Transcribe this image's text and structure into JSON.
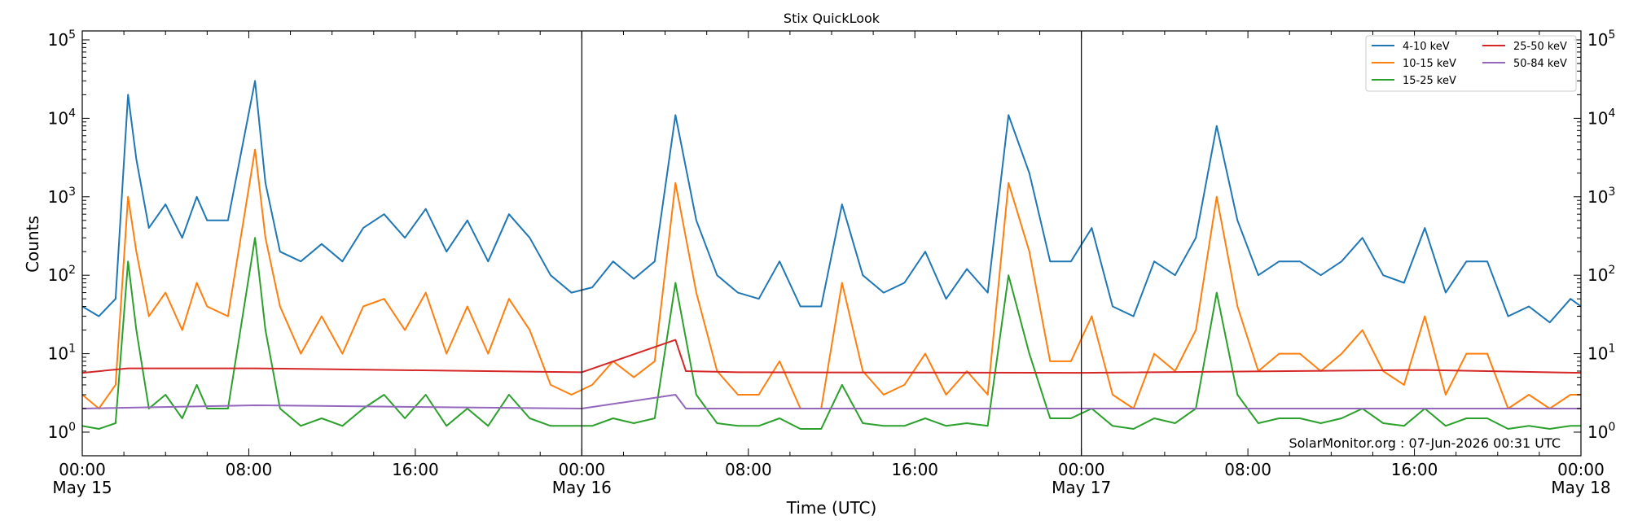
{
  "chart_data": {
    "type": "line",
    "title": "Stix QuickLook",
    "xlabel": "Time (UTC)",
    "ylabel": "Counts",
    "yscale": "log",
    "ylim": [
      0.5,
      130000
    ],
    "xlim_hours": [
      0,
      72
    ],
    "grid": false,
    "legend_position": "top-right",
    "y_tick_labels": [
      {
        "base": "10",
        "exp": "0",
        "value": 1
      },
      {
        "base": "10",
        "exp": "1",
        "value": 10
      },
      {
        "base": "10",
        "exp": "2",
        "value": 100
      },
      {
        "base": "10",
        "exp": "3",
        "value": 1000
      },
      {
        "base": "10",
        "exp": "4",
        "value": 10000
      },
      {
        "base": "10",
        "exp": "5",
        "value": 100000
      }
    ],
    "x_ticks": [
      {
        "hour": 0,
        "time": "00:00",
        "date": "May 15"
      },
      {
        "hour": 8,
        "time": "08:00",
        "date": ""
      },
      {
        "hour": 16,
        "time": "16:00",
        "date": ""
      },
      {
        "hour": 24,
        "time": "00:00",
        "date": "May 16"
      },
      {
        "hour": 32,
        "time": "08:00",
        "date": ""
      },
      {
        "hour": 40,
        "time": "16:00",
        "date": ""
      },
      {
        "hour": 48,
        "time": "00:00",
        "date": "May 17"
      },
      {
        "hour": 56,
        "time": "08:00",
        "date": ""
      },
      {
        "hour": 64,
        "time": "16:00",
        "date": ""
      },
      {
        "hour": 72,
        "time": "00:00",
        "date": "May 18"
      }
    ],
    "day_boundaries_hours": [
      24,
      48
    ],
    "annotation": "SolarMonitor.org : 07-Jun-2026 00:31 UTC",
    "series": [
      {
        "name": "4-10 keV",
        "color": "#1f77b4",
        "points": [
          [
            0,
            40
          ],
          [
            0.8,
            30
          ],
          [
            1.6,
            50
          ],
          [
            2.2,
            20000
          ],
          [
            2.6,
            3000
          ],
          [
            3.2,
            400
          ],
          [
            4,
            800
          ],
          [
            4.8,
            300
          ],
          [
            5.5,
            1000
          ],
          [
            6,
            500
          ],
          [
            7,
            500
          ],
          [
            8.3,
            30000
          ],
          [
            8.8,
            1500
          ],
          [
            9.5,
            200
          ],
          [
            10.5,
            150
          ],
          [
            11.5,
            250
          ],
          [
            12.5,
            150
          ],
          [
            13.5,
            400
          ],
          [
            14.5,
            600
          ],
          [
            15.5,
            300
          ],
          [
            16.5,
            700
          ],
          [
            17.5,
            200
          ],
          [
            18.5,
            500
          ],
          [
            19.5,
            150
          ],
          [
            20.5,
            600
          ],
          [
            21.5,
            300
          ],
          [
            22.5,
            100
          ],
          [
            23.5,
            60
          ],
          [
            24.5,
            70
          ],
          [
            25.5,
            150
          ],
          [
            26.5,
            90
          ],
          [
            27.5,
            150
          ],
          [
            28.5,
            11000
          ],
          [
            29.5,
            500
          ],
          [
            30.5,
            100
          ],
          [
            31.5,
            60
          ],
          [
            32.5,
            50
          ],
          [
            33.5,
            150
          ],
          [
            34.5,
            40
          ],
          [
            35.5,
            40
          ],
          [
            36.5,
            800
          ],
          [
            37.5,
            100
          ],
          [
            38.5,
            60
          ],
          [
            39.5,
            80
          ],
          [
            40.5,
            200
          ],
          [
            41.5,
            50
          ],
          [
            42.5,
            120
          ],
          [
            43.5,
            60
          ],
          [
            44.5,
            11000
          ],
          [
            45.5,
            2000
          ],
          [
            46.5,
            150
          ],
          [
            47.5,
            150
          ],
          [
            48.5,
            400
          ],
          [
            49.5,
            40
          ],
          [
            50.5,
            30
          ],
          [
            51.5,
            150
          ],
          [
            52.5,
            100
          ],
          [
            53.5,
            300
          ],
          [
            54.5,
            8000
          ],
          [
            55.5,
            500
          ],
          [
            56.5,
            100
          ],
          [
            57.5,
            150
          ],
          [
            58.5,
            150
          ],
          [
            59.5,
            100
          ],
          [
            60.5,
            150
          ],
          [
            61.5,
            300
          ],
          [
            62.5,
            100
          ],
          [
            63.5,
            80
          ],
          [
            64.5,
            400
          ],
          [
            65.5,
            60
          ],
          [
            66.5,
            150
          ],
          [
            67.5,
            150
          ],
          [
            68.5,
            30
          ],
          [
            69.5,
            40
          ],
          [
            70.5,
            25
          ],
          [
            71.5,
            50
          ],
          [
            72,
            40
          ]
        ]
      },
      {
        "name": "10-15 keV",
        "color": "#ff7f0e",
        "points": [
          [
            0,
            3
          ],
          [
            0.8,
            2
          ],
          [
            1.6,
            4
          ],
          [
            2.2,
            1000
          ],
          [
            2.6,
            200
          ],
          [
            3.2,
            30
          ],
          [
            4,
            60
          ],
          [
            4.8,
            20
          ],
          [
            5.5,
            80
          ],
          [
            6,
            40
          ],
          [
            7,
            30
          ],
          [
            8.3,
            4000
          ],
          [
            8.8,
            300
          ],
          [
            9.5,
            40
          ],
          [
            10.5,
            10
          ],
          [
            11.5,
            30
          ],
          [
            12.5,
            10
          ],
          [
            13.5,
            40
          ],
          [
            14.5,
            50
          ],
          [
            15.5,
            20
          ],
          [
            16.5,
            60
          ],
          [
            17.5,
            10
          ],
          [
            18.5,
            40
          ],
          [
            19.5,
            10
          ],
          [
            20.5,
            50
          ],
          [
            21.5,
            20
          ],
          [
            22.5,
            4
          ],
          [
            23.5,
            3
          ],
          [
            24.5,
            4
          ],
          [
            25.5,
            8
          ],
          [
            26.5,
            5
          ],
          [
            27.5,
            8
          ],
          [
            28.5,
            1500
          ],
          [
            29.5,
            60
          ],
          [
            30.5,
            6
          ],
          [
            31.5,
            3
          ],
          [
            32.5,
            3
          ],
          [
            33.5,
            8
          ],
          [
            34.5,
            2
          ],
          [
            35.5,
            2
          ],
          [
            36.5,
            80
          ],
          [
            37.5,
            6
          ],
          [
            38.5,
            3
          ],
          [
            39.5,
            4
          ],
          [
            40.5,
            10
          ],
          [
            41.5,
            3
          ],
          [
            42.5,
            6
          ],
          [
            43.5,
            3
          ],
          [
            44.5,
            1500
          ],
          [
            45.5,
            200
          ],
          [
            46.5,
            8
          ],
          [
            47.5,
            8
          ],
          [
            48.5,
            30
          ],
          [
            49.5,
            3
          ],
          [
            50.5,
            2
          ],
          [
            51.5,
            10
          ],
          [
            52.5,
            6
          ],
          [
            53.5,
            20
          ],
          [
            54.5,
            1000
          ],
          [
            55.5,
            40
          ],
          [
            56.5,
            6
          ],
          [
            57.5,
            10
          ],
          [
            58.5,
            10
          ],
          [
            59.5,
            6
          ],
          [
            60.5,
            10
          ],
          [
            61.5,
            20
          ],
          [
            62.5,
            6
          ],
          [
            63.5,
            4
          ],
          [
            64.5,
            30
          ],
          [
            65.5,
            3
          ],
          [
            66.5,
            10
          ],
          [
            67.5,
            10
          ],
          [
            68.5,
            2
          ],
          [
            69.5,
            3
          ],
          [
            70.5,
            2
          ],
          [
            71.5,
            3
          ],
          [
            72,
            3
          ]
        ]
      },
      {
        "name": "15-25 keV",
        "color": "#2ca02c",
        "points": [
          [
            0,
            1.2
          ],
          [
            0.8,
            1.1
          ],
          [
            1.6,
            1.3
          ],
          [
            2.2,
            150
          ],
          [
            2.6,
            20
          ],
          [
            3.2,
            2
          ],
          [
            4,
            3
          ],
          [
            4.8,
            1.5
          ],
          [
            5.5,
            4
          ],
          [
            6,
            2
          ],
          [
            7,
            2
          ],
          [
            8.3,
            300
          ],
          [
            8.8,
            20
          ],
          [
            9.5,
            2
          ],
          [
            10.5,
            1.2
          ],
          [
            11.5,
            1.5
          ],
          [
            12.5,
            1.2
          ],
          [
            13.5,
            2
          ],
          [
            14.5,
            3
          ],
          [
            15.5,
            1.5
          ],
          [
            16.5,
            3
          ],
          [
            17.5,
            1.2
          ],
          [
            18.5,
            2
          ],
          [
            19.5,
            1.2
          ],
          [
            20.5,
            3
          ],
          [
            21.5,
            1.5
          ],
          [
            22.5,
            1.2
          ],
          [
            23.5,
            1.2
          ],
          [
            24.5,
            1.2
          ],
          [
            25.5,
            1.5
          ],
          [
            26.5,
            1.3
          ],
          [
            27.5,
            1.5
          ],
          [
            28.5,
            80
          ],
          [
            29.5,
            3
          ],
          [
            30.5,
            1.3
          ],
          [
            31.5,
            1.2
          ],
          [
            32.5,
            1.2
          ],
          [
            33.5,
            1.5
          ],
          [
            34.5,
            1.1
          ],
          [
            35.5,
            1.1
          ],
          [
            36.5,
            4
          ],
          [
            37.5,
            1.3
          ],
          [
            38.5,
            1.2
          ],
          [
            39.5,
            1.2
          ],
          [
            40.5,
            1.5
          ],
          [
            41.5,
            1.2
          ],
          [
            42.5,
            1.3
          ],
          [
            43.5,
            1.2
          ],
          [
            44.5,
            100
          ],
          [
            45.5,
            10
          ],
          [
            46.5,
            1.5
          ],
          [
            47.5,
            1.5
          ],
          [
            48.5,
            2
          ],
          [
            49.5,
            1.2
          ],
          [
            50.5,
            1.1
          ],
          [
            51.5,
            1.5
          ],
          [
            52.5,
            1.3
          ],
          [
            53.5,
            2
          ],
          [
            54.5,
            60
          ],
          [
            55.5,
            3
          ],
          [
            56.5,
            1.3
          ],
          [
            57.5,
            1.5
          ],
          [
            58.5,
            1.5
          ],
          [
            59.5,
            1.3
          ],
          [
            60.5,
            1.5
          ],
          [
            61.5,
            2
          ],
          [
            62.5,
            1.3
          ],
          [
            63.5,
            1.2
          ],
          [
            64.5,
            2
          ],
          [
            65.5,
            1.2
          ],
          [
            66.5,
            1.5
          ],
          [
            67.5,
            1.5
          ],
          [
            68.5,
            1.1
          ],
          [
            69.5,
            1.2
          ],
          [
            70.5,
            1.1
          ],
          [
            71.5,
            1.2
          ],
          [
            72,
            1.2
          ]
        ]
      },
      {
        "name": "25-50 keV",
        "color": "#d62728",
        "points": [
          [
            0,
            5.7
          ],
          [
            2.2,
            6.5
          ],
          [
            8.3,
            6.5
          ],
          [
            24,
            5.8
          ],
          [
            28.5,
            15
          ],
          [
            29,
            6
          ],
          [
            31.5,
            5.8
          ],
          [
            48,
            5.7
          ],
          [
            64.5,
            6.2
          ],
          [
            72,
            5.7
          ]
        ]
      },
      {
        "name": "50-84 keV",
        "color": "#9467bd",
        "points": [
          [
            0,
            2.0
          ],
          [
            8.3,
            2.2
          ],
          [
            24,
            2.0
          ],
          [
            28.5,
            3
          ],
          [
            29,
            2.0
          ],
          [
            48,
            2.0
          ],
          [
            72,
            2.0
          ]
        ]
      }
    ]
  }
}
